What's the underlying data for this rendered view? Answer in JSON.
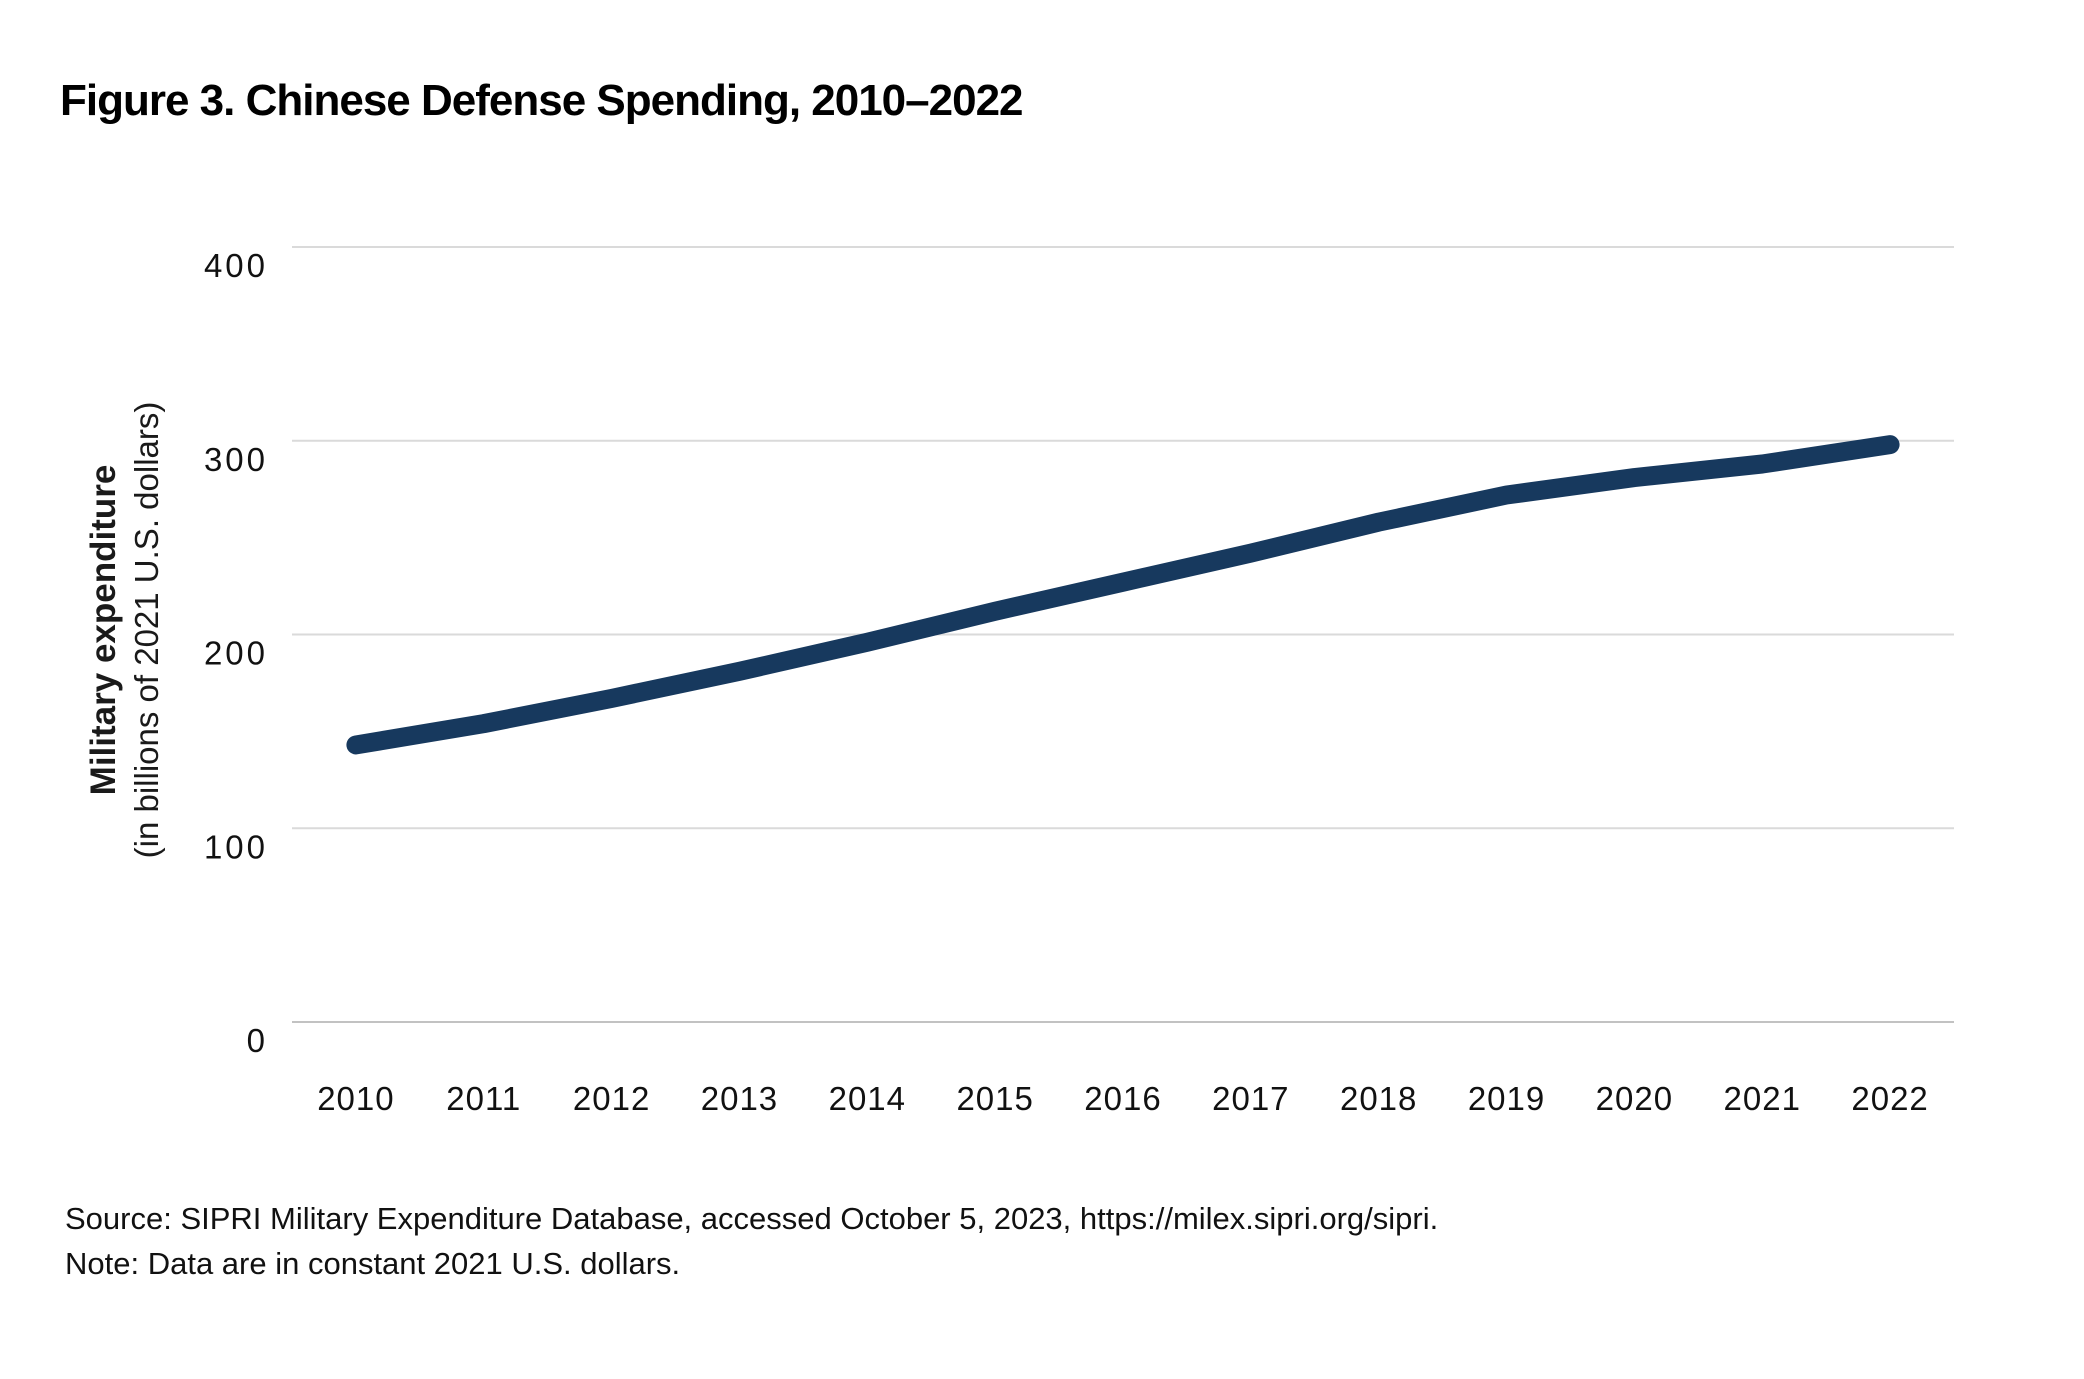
{
  "page": {
    "title": "Figure 3. Chinese Defense Spending, 2010–2022",
    "source": "Source: SIPRI Military Expenditure Database, accessed October 5, 2023, https://milex.sipri.org/sipri.",
    "note": "Note: Data are in constant 2021 U.S. dollars."
  },
  "y_axis": {
    "label": "Military expenditure",
    "sublabel": "(in billions of 2021 U.S. dollars)"
  },
  "colors": {
    "line": "#17395e",
    "gridline": "#dadada",
    "zero_line": "#c2c2c2",
    "tick_text": "#111111"
  },
  "chart_data": {
    "type": "line",
    "x": [
      2010,
      2011,
      2012,
      2013,
      2014,
      2015,
      2016,
      2017,
      2018,
      2019,
      2020,
      2021,
      2022
    ],
    "series": [
      {
        "name": "Chinese military expenditure (billions of constant 2021 U.S. dollars)",
        "values": [
          143,
          154,
          167,
          181,
          196,
          212,
          227,
          242,
          258,
          272,
          281,
          288,
          298
        ]
      }
    ],
    "title": "Figure 3. Chinese Defense Spending, 2010–2022",
    "xlabel": "",
    "ylabel": "Military expenditure (in billions of 2021 U.S. dollars)",
    "ylim": [
      0,
      400
    ],
    "yticks": [
      0,
      100,
      200,
      300,
      400
    ],
    "grid": "horizontal",
    "legend": "none"
  }
}
